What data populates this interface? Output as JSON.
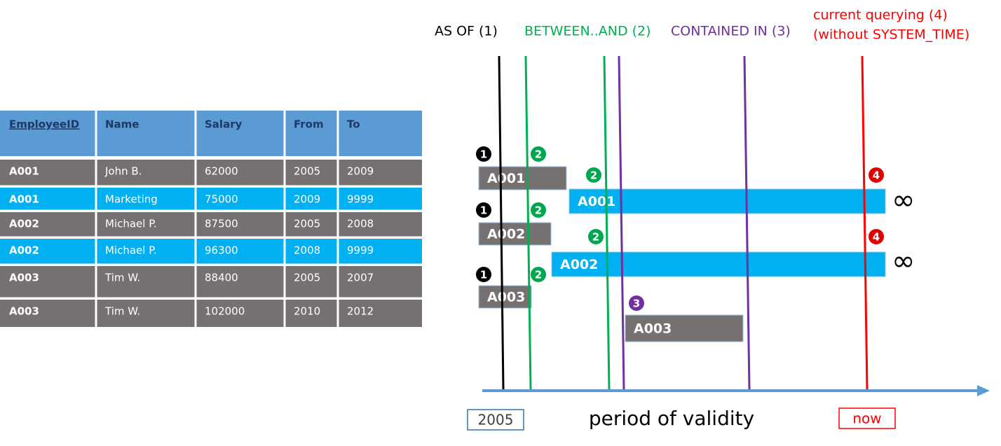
{
  "table": {
    "header": [
      "EmployeeID",
      "Name",
      "Salary",
      "From",
      "To"
    ],
    "rows": [
      [
        "A001",
        "John  B.",
        "62000",
        "2005",
        "2009"
      ],
      [
        "A001",
        "Marketing",
        "75000",
        "2009",
        "9999"
      ],
      [
        "A002",
        "Michael P.",
        "87500",
        "2005",
        "2008"
      ],
      [
        "A002",
        "Michael P.",
        "96300",
        "2008",
        "9999"
      ],
      [
        "A003",
        "Tim W.",
        "88400",
        "2005",
        "2007"
      ],
      [
        "A003",
        "Tim W.",
        "102000",
        "2010",
        "2012"
      ]
    ]
  },
  "queries": [
    {
      "lines": [
        "AS OF (1)"
      ],
      "color": "#000000"
    },
    {
      "lines": [
        "BETWEEN..AND (2)"
      ],
      "color": "#00b050"
    },
    {
      "lines": [
        "CONTAINED IN (3)"
      ],
      "color": "#7030a0"
    },
    {
      "lines": [
        "current querying (4)",
        "(without SYSTEM_TIME)"
      ],
      "color": "#ff0000"
    }
  ],
  "bars": [
    "A001",
    "A001",
    "A002",
    "A002",
    "A003",
    "A003"
  ],
  "badges": [
    {
      "label": "1",
      "color": "#000000"
    },
    {
      "label": "2",
      "color": "#00a650"
    },
    {
      "label": "2",
      "color": "#00a650"
    },
    {
      "label": "4",
      "color": "#e00000"
    },
    {
      "label": "1",
      "color": "#000000"
    },
    {
      "label": "2",
      "color": "#00a650"
    },
    {
      "label": "2",
      "color": "#00a650"
    },
    {
      "label": "4",
      "color": "#e00000"
    },
    {
      "label": "1",
      "color": "#000000"
    },
    {
      "label": "2",
      "color": "#00a650"
    },
    {
      "label": "3",
      "color": "#7030a0"
    }
  ],
  "infinity": [
    "∞",
    "∞"
  ],
  "axis": {
    "start": "2005",
    "title": "period of validity",
    "end": "now"
  }
}
